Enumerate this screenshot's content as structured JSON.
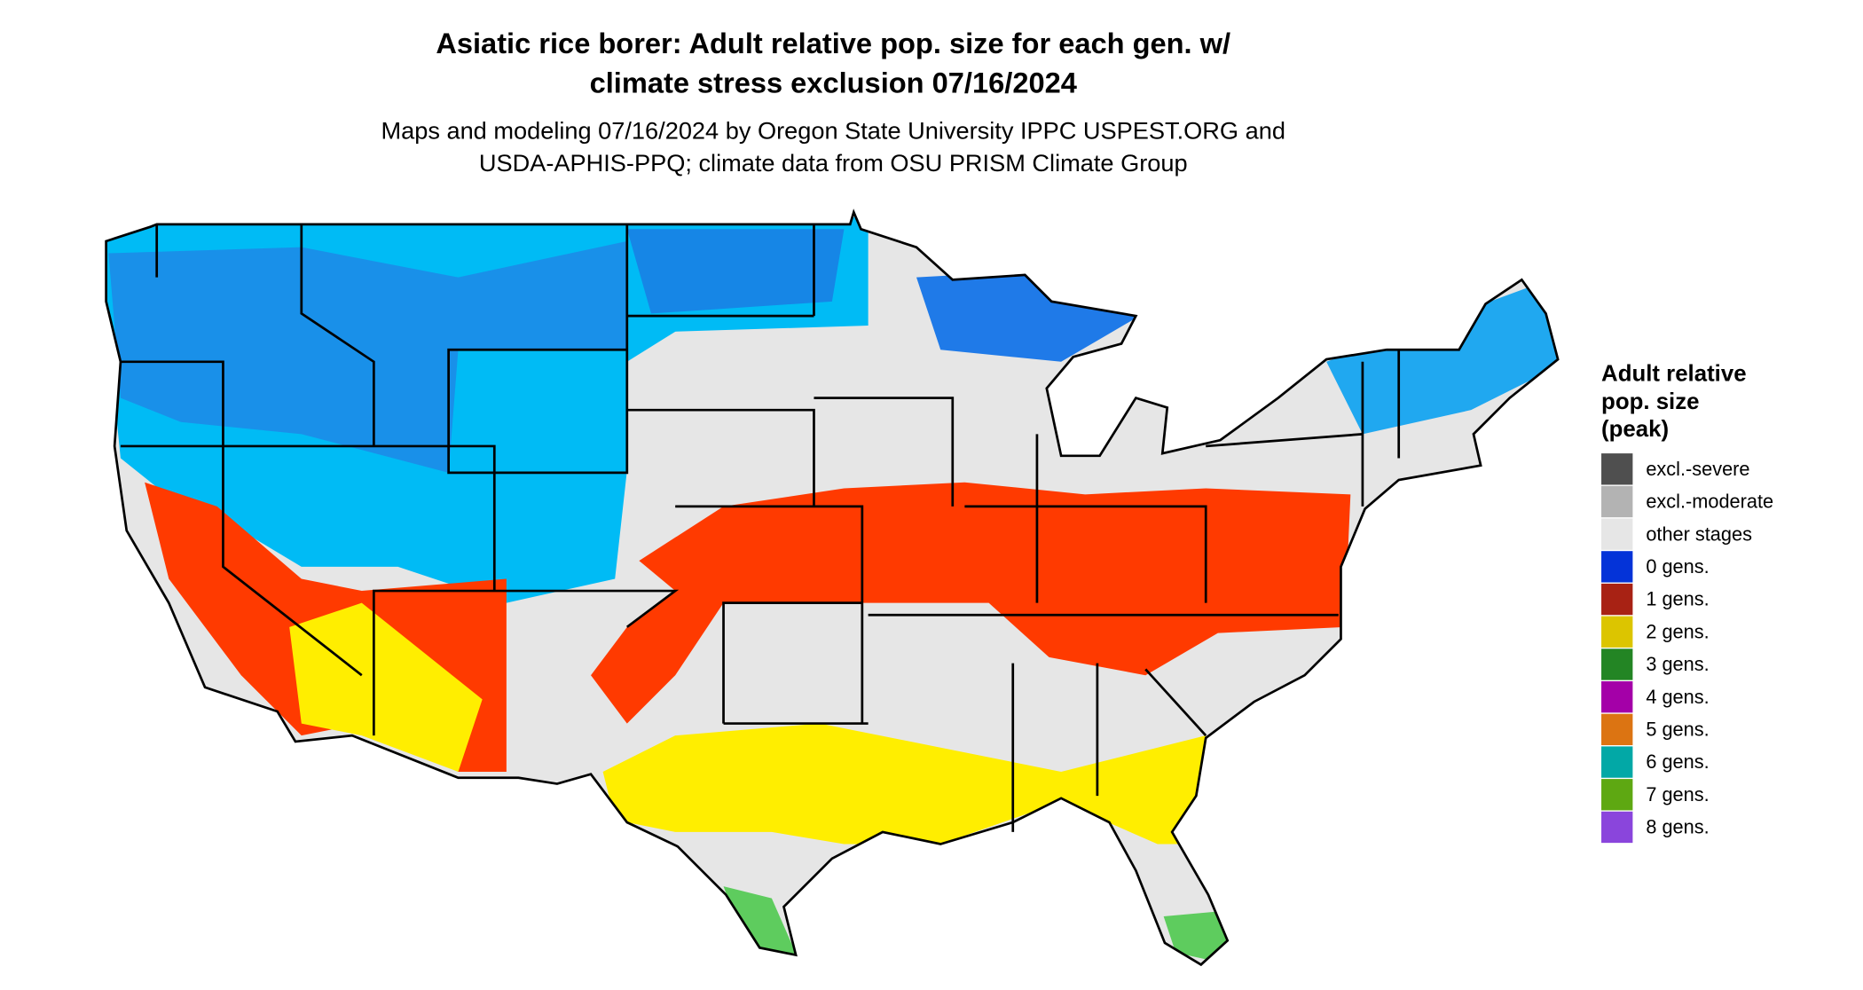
{
  "header": {
    "title": [
      "Asiatic rice borer: Adult relative pop. size for each gen. w/",
      "climate stress exclusion 07/16/2024"
    ],
    "subtitle": [
      "Maps and modeling 07/16/2024 by Oregon State University IPPC USPEST.ORG and",
      "USDA-APHIS-PPQ; climate data from OSU PRISM Climate Group"
    ]
  },
  "legend": {
    "title": [
      "Adult relative",
      "pop. size",
      "(peak)"
    ],
    "items": [
      {
        "label": "excl.-severe",
        "color": "#4f4f4f"
      },
      {
        "label": "excl.-moderate",
        "color": "#b3b3b3"
      },
      {
        "label": "other stages",
        "color": "#e6e6e6"
      },
      {
        "label": "0 gens.",
        "color": "#0433d8"
      },
      {
        "label": "1 gens.",
        "color": "#a82214"
      },
      {
        "label": "2 gens.",
        "color": "#dcc500"
      },
      {
        "label": "3 gens.",
        "color": "#238524"
      },
      {
        "label": "4 gens.",
        "color": "#a400a8"
      },
      {
        "label": "5 gens.",
        "color": "#dc7412"
      },
      {
        "label": "6 gens.",
        "color": "#02a8a6"
      },
      {
        "label": "7 gens.",
        "color": "#5ea812"
      },
      {
        "label": "8 gens.",
        "color": "#8a45dc"
      }
    ]
  }
}
